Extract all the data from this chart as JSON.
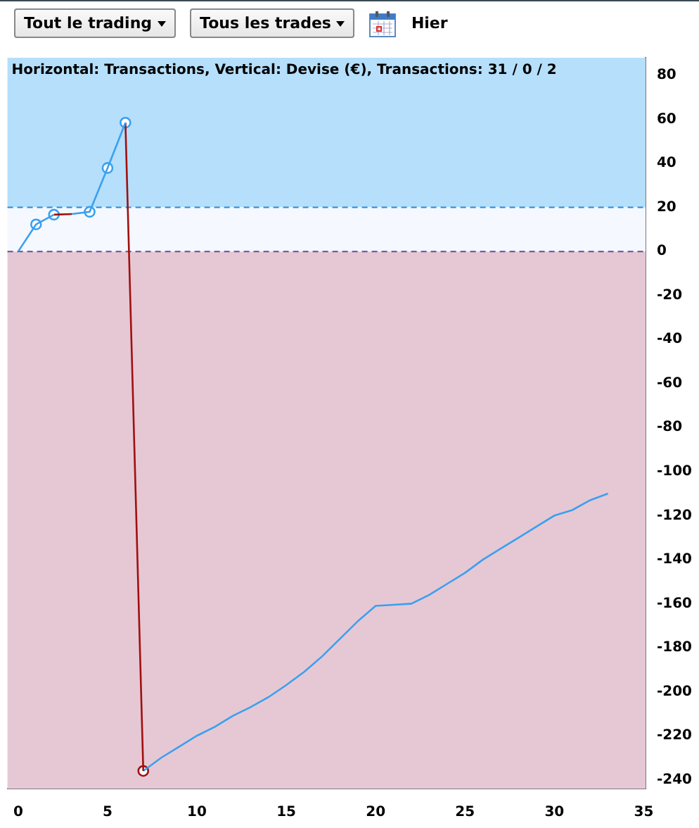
{
  "chart_data": {
    "type": "line",
    "title": "Horizontal: Transactions, Vertical: Devise (€), Transactions: 31 / 0 / 2",
    "annotations": [
      "Tout le trading",
      "Tous les trades",
      "Hier"
    ],
    "xlim": [
      -0.6,
      35.1
    ],
    "xticks": [
      0,
      5,
      10,
      15,
      20,
      25,
      30,
      35
    ],
    "ylim": [
      -244,
      88
    ],
    "yticks": [
      80,
      60,
      40,
      20,
      0,
      -20,
      -40,
      -60,
      -80,
      -100,
      -120,
      -140,
      -160,
      -180,
      -200,
      -220,
      -240
    ],
    "grid": false,
    "legend": false,
    "bands": [
      {
        "axis": "y",
        "from": 20,
        "to": 88,
        "color": "#b5dffb"
      },
      {
        "axis": "y",
        "from": 0,
        "to": 20,
        "color": "#f5f8ff"
      },
      {
        "axis": "y",
        "from": -244,
        "to": 0,
        "color": "#e6c8d4"
      }
    ],
    "ref_lines": [
      {
        "axis": "y",
        "value": 20,
        "color": "#2a8ad8",
        "line_style": "dashed"
      },
      {
        "axis": "y",
        "value": 0,
        "color": "#6a4a9a",
        "line_style": "dashed"
      }
    ],
    "series": [
      {
        "marker": "none",
        "color": "#3aa0f0",
        "x": [
          0,
          1,
          2
        ],
        "values": [
          0,
          12.3,
          16.7
        ]
      },
      {
        "marker": "none",
        "color": "#a01010",
        "x": [
          2,
          3
        ],
        "values": [
          16.7,
          17
        ]
      },
      {
        "marker": "none",
        "color": "#3aa0f0",
        "x": [
          3,
          4,
          5,
          6
        ],
        "values": [
          17,
          18,
          37.9,
          58.5
        ]
      },
      {
        "marker": "none",
        "color": "#a01010",
        "x": [
          6,
          7
        ],
        "values": [
          58.5,
          -236
        ]
      },
      {
        "marker": "none",
        "color": "#3aa0f0",
        "x": [
          7,
          8,
          9,
          10,
          11,
          12,
          13,
          14,
          15,
          16,
          17,
          18,
          19,
          20,
          21,
          22,
          23,
          24,
          25,
          26,
          27,
          28,
          29,
          30,
          31,
          32,
          33
        ],
        "values": [
          -236,
          -230,
          -225,
          -220,
          -216,
          -211,
          -207,
          -202.5,
          -197,
          -191,
          -184,
          -176,
          -168,
          -161,
          -160.5,
          -160,
          -156,
          -151,
          -146,
          -140,
          -135,
          -130,
          -125,
          -120,
          -117.5,
          -113,
          -110
        ]
      },
      {
        "type": "scatter",
        "marker": "circle",
        "x": [
          1,
          2,
          4,
          5,
          6,
          7
        ],
        "values": [
          12.3,
          16.7,
          18,
          37.9,
          58.5,
          -236
        ],
        "colors": [
          "#3aa0f0",
          "#3aa0f0",
          "#3aa0f0",
          "#3aa0f0",
          "#3aa0f0",
          "#a01010"
        ]
      }
    ]
  }
}
